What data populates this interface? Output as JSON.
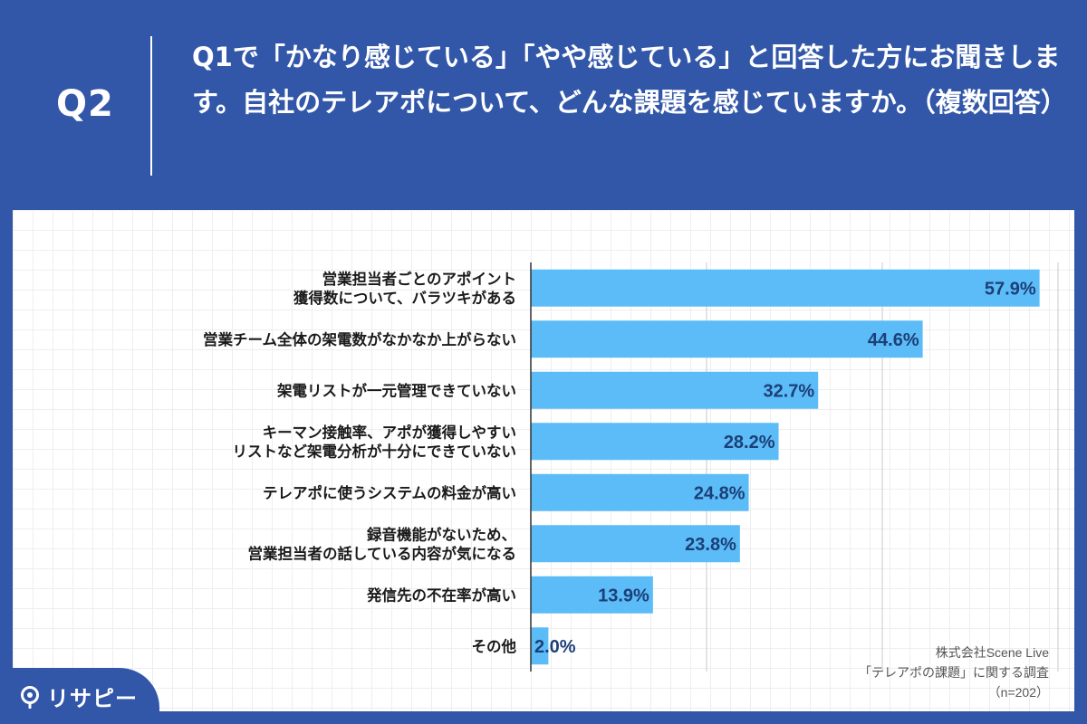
{
  "header": {
    "q_label": "Q2",
    "question": "Q1で「かなり感じている」「やや感じている」と回答した方にお聞きします。自社のテレアポについて、どんな課題を感じていますか。（複数回答）"
  },
  "source": {
    "line1": "株式会社Scene Live",
    "line2": "「テレアポの課題」に関する調査",
    "line3": "（n=202）"
  },
  "logo": {
    "text": "リサピー"
  },
  "colors": {
    "background": "#3257a8",
    "bar": "#5bbcf7",
    "value_label": "#1c3f78"
  },
  "chart_data": {
    "type": "bar",
    "orientation": "horizontal",
    "value_suffix": "%",
    "xlim": [
      0,
      60
    ],
    "grid": true,
    "categories": [
      [
        "営業担当者ごとのアポイント",
        "獲得数について、バラツキがある"
      ],
      [
        "営業チーム全体の架電数がなかなか上がらない"
      ],
      [
        "架電リストが一元管理できていない"
      ],
      [
        "キーマン接触率、アポが獲得しやすい",
        "リストなど架電分析が十分にできていない"
      ],
      [
        "テレアポに使うシステムの料金が高い"
      ],
      [
        "録音機能がないため、",
        "営業担当者の話している内容が気になる"
      ],
      [
        "発信先の不在率が高い"
      ],
      [
        "その他"
      ]
    ],
    "values": [
      57.9,
      44.6,
      32.7,
      28.2,
      24.8,
      23.8,
      13.9,
      2.0
    ],
    "value_labels": [
      "57.9%",
      "44.6%",
      "32.7%",
      "28.2%",
      "24.8%",
      "23.8%",
      "13.9%",
      "2.0%"
    ]
  }
}
